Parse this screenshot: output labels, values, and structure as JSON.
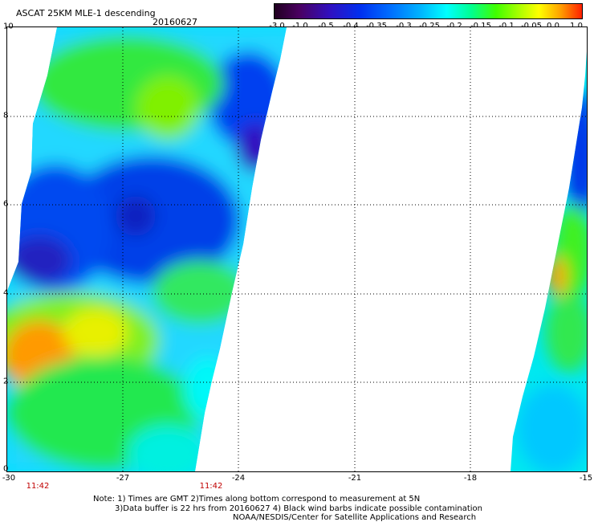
{
  "title": "ASCAT 25KM MLE-1 descending",
  "date": "20160627",
  "colorbar": {
    "labels": [
      "-3.0",
      "-1.0",
      "-0.5",
      "-0.4",
      "-0.35",
      "-0.3",
      "-0.25",
      "-0.2",
      "-0.15",
      "-0.1",
      "-0.05",
      "0.0",
      "1.0"
    ]
  },
  "y_ticks": [
    "10",
    "8",
    "6",
    "4",
    "2",
    "0"
  ],
  "x_ticks": [
    "-30",
    "-27",
    "-24",
    "-21",
    "-18",
    "-15"
  ],
  "times": [
    "11:42",
    "11:42"
  ],
  "notes": {
    "line1": "Note: 1) Times are GMT 2)Times along bottom correspond to measurement at 5N",
    "line2": "3)Data buffer is 22 hrs from 20160627 4) Black wind barbs indicate possible contamination",
    "line3": "NOAA/NESDIS/Center for Satellite Applications and Research"
  },
  "colors": {
    "green": "#20e840",
    "cyan": "#00f0f0",
    "blue": "#0050f0",
    "orange": "#ffa000",
    "yellow": "#e8f000"
  }
}
